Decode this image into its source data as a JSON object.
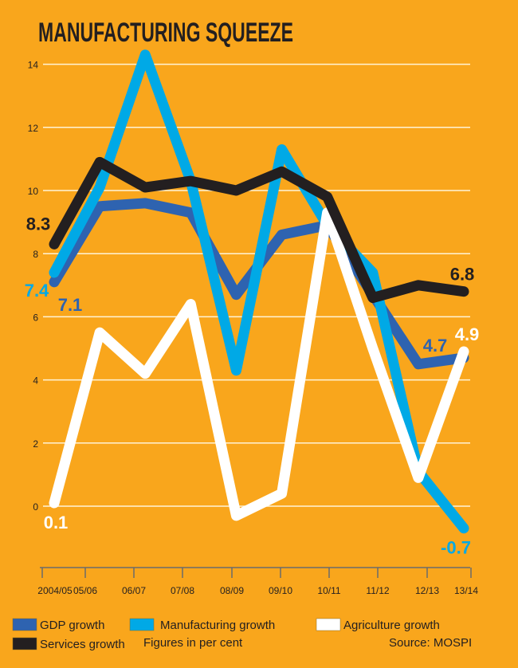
{
  "chart_data": {
    "type": "line",
    "title": "MANUFACTURING SQUEEZE",
    "categories": [
      "2004/05",
      "05/06",
      "06/07",
      "07/08",
      "08/09",
      "09/10",
      "10/11",
      "11/12",
      "12/13",
      "13/14"
    ],
    "ylim": [
      -1,
      14
    ],
    "yticks": [
      0,
      2,
      4,
      6,
      8,
      10,
      12,
      14
    ],
    "grid": true,
    "legend_position": "bottom",
    "series": [
      {
        "name": "GDP growth",
        "color": "#2E63B0",
        "values": [
          7.1,
          9.5,
          9.6,
          9.3,
          6.7,
          8.6,
          8.9,
          6.7,
          4.5,
          4.7
        ]
      },
      {
        "name": "Manufacturing growth",
        "color": "#00A9E6",
        "values": [
          7.4,
          10.1,
          14.3,
          10.3,
          4.3,
          11.3,
          8.9,
          7.4,
          1.1,
          -0.7
        ]
      },
      {
        "name": "Agriculture growth",
        "color": "#FFFFFF",
        "values": [
          0.1,
          5.5,
          4.2,
          6.4,
          -0.3,
          0.4,
          9.3,
          5.0,
          0.9,
          4.9
        ]
      },
      {
        "name": "Services growth",
        "color": "#231F20",
        "values": [
          8.3,
          10.9,
          10.1,
          10.3,
          10.0,
          10.6,
          9.8,
          6.6,
          7.0,
          6.8
        ]
      }
    ],
    "annotations": [
      {
        "text": "8.3",
        "series": 3,
        "index": 0
      },
      {
        "text": "7.4",
        "series": 1,
        "index": 0
      },
      {
        "text": "7.1",
        "series": 0,
        "index": 0
      },
      {
        "text": "0.1",
        "series": 2,
        "index": 0
      },
      {
        "text": "6.8",
        "series": 3,
        "index": 9
      },
      {
        "text": "4.7",
        "series": 0,
        "index": 9
      },
      {
        "text": "4.9",
        "series": 2,
        "index": 9
      },
      {
        "text": "-0.7",
        "series": 1,
        "index": 9
      }
    ],
    "note": "Figures in per cent",
    "source": "Source: MOSPI"
  },
  "colors": {
    "background": "#F9A61C",
    "grid": "#FFF3D6",
    "axis": "#6B6B6B"
  }
}
